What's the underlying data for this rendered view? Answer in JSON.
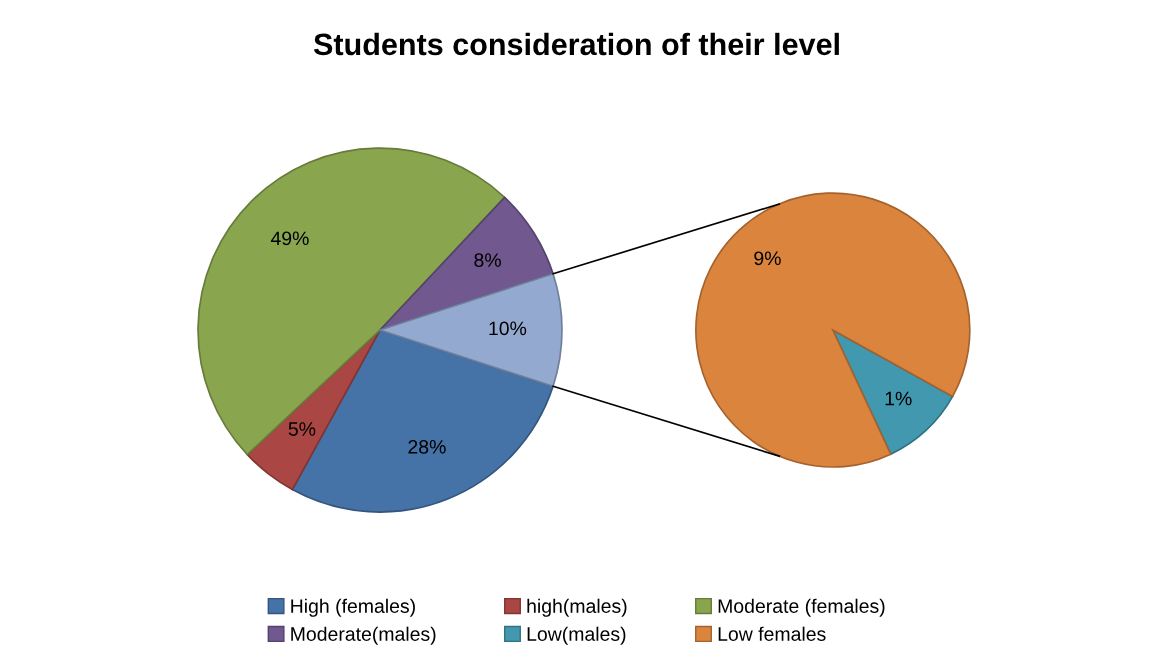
{
  "chart_data": [
    {
      "type": "pie",
      "title": "Students consideration of their level",
      "categories": [
        "High (females)",
        "high(males)",
        "Moderate (females)",
        "Moderate(males)",
        null
      ],
      "values": [
        28,
        5,
        49,
        8,
        10
      ],
      "colors": [
        "#4572a7",
        "#aa4643",
        "#89a54e",
        "#71588f",
        "#93a9cf"
      ],
      "value_labels": [
        "28%",
        "5%",
        "49%",
        "8%",
        "10%"
      ],
      "legend": "bottom"
    },
    {
      "type": "pie",
      "categories": [
        "Low(males)",
        "Low females"
      ],
      "values": [
        1,
        9
      ],
      "colors": [
        "#4198af",
        "#db843d"
      ],
      "value_labels": [
        "1%",
        "9%"
      ],
      "legend": "bottom"
    }
  ]
}
